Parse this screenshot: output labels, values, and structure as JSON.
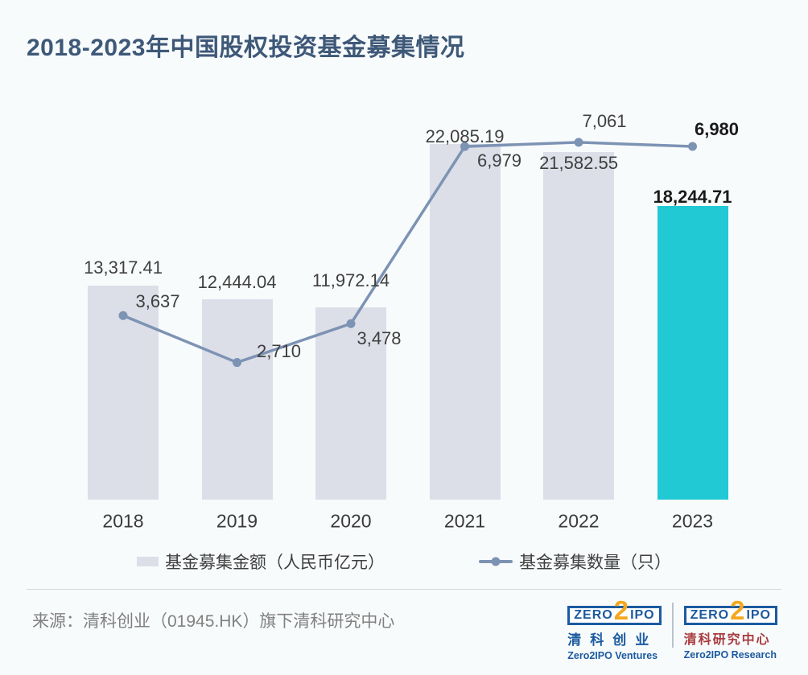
{
  "title": "2018-2023年中国股权投资基金募集情况",
  "colors": {
    "background": "#f8fbfc",
    "bar": "#dcdfe8",
    "bar_highlight": "#20c9d3",
    "line": "#7d93b4",
    "title": "#3e5878",
    "label": "#3f3f3f",
    "label_bold": "#1a1a1a",
    "source_text": "#818181",
    "logo_blue": "#1b5aa0",
    "logo_orange": "#f3a81f",
    "logo_red": "#a93b3e"
  },
  "chart_data": {
    "type": "bar",
    "subtype": "bar-line-combo",
    "title": "2018-2023年中国股权投资基金募集情况",
    "categories": [
      "2018",
      "2019",
      "2020",
      "2021",
      "2022",
      "2023"
    ],
    "series": [
      {
        "name": "基金募集金额（人民币亿元）",
        "type": "bar",
        "values": [
          13317.41,
          12444.04,
          11972.14,
          22085.19,
          21582.55,
          18244.71
        ],
        "labels": [
          "13,317.41",
          "12,444.04",
          "11,972.14",
          "22,085.19",
          "21,582.55",
          "18,244.71"
        ],
        "highlight_index": 5
      },
      {
        "name": "基金募集数量（只）",
        "type": "line",
        "values": [
          3637,
          2710,
          3478,
          6979,
          7061,
          6980
        ],
        "labels": [
          "3,637",
          "2,710",
          "3,478",
          "6,979",
          "7,061",
          "6,980"
        ],
        "highlight_index": 5
      }
    ],
    "xlabel": "",
    "grid": false,
    "axes_visible": false,
    "legend_position": "bottom"
  },
  "legend": {
    "items": [
      {
        "label": "基金募集金额（人民币亿元）",
        "marker": "bar-swatch"
      },
      {
        "label": "基金募集数量（只）",
        "marker": "line-dot"
      }
    ]
  },
  "footer": {
    "source": "来源：清科创业（01945.HK）旗下清科研究中心",
    "logos": [
      {
        "badge_left": "ZERO",
        "badge_mid": "2",
        "badge_right": "IPO",
        "cn": "清科创业",
        "en": "Zero2IPO Ventures"
      },
      {
        "badge_left": "ZERO",
        "badge_mid": "2",
        "badge_right": "IPO",
        "cn": "清科研究中心",
        "en": "Zero2IPO Research"
      }
    ]
  }
}
